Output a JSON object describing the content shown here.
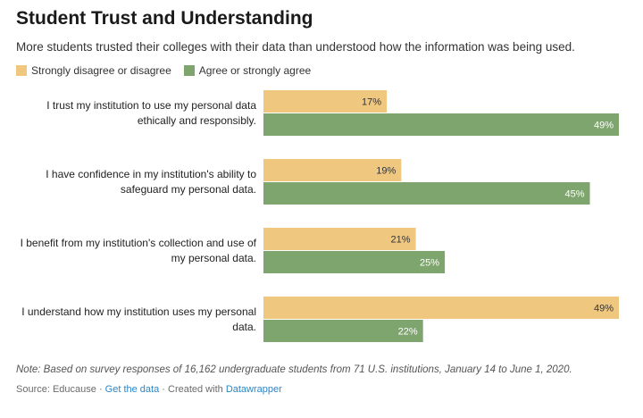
{
  "chart_data": {
    "type": "bar",
    "orientation": "horizontal",
    "title": "Student Trust and Understanding",
    "subtitle": "More students trusted their colleges with their data than understood how the information was being used.",
    "categories": [
      [
        "I trust my institution to use my personal data",
        "ethically and responsibly."
      ],
      [
        "I have confidence in my institution's ability to",
        "safeguard my personal data."
      ],
      [
        "I benefit from my institution's collection and use of",
        "my personal data."
      ],
      [
        "I understand how my institution uses my personal",
        "data."
      ]
    ],
    "series": [
      {
        "name": "Strongly disagree or disagree",
        "color": "#f0c77e",
        "label_color": "#333333",
        "values": [
          17,
          19,
          21,
          49
        ]
      },
      {
        "name": "Agree or strongly agree",
        "color": "#7fa56e",
        "label_color": "#ffffff",
        "values": [
          49,
          45,
          25,
          22
        ]
      }
    ],
    "value_suffix": "%",
    "xlim": [
      0,
      49
    ],
    "grid": false
  },
  "note": "Note: Based on survey responses of 16,162 undergraduate students from 71 U.S. institutions, January 14 to June 1, 2020.",
  "source": {
    "prefix": "Source: Educause · ",
    "link1": "Get the data",
    "middle": " · Created with ",
    "link2": "Datawrapper"
  }
}
